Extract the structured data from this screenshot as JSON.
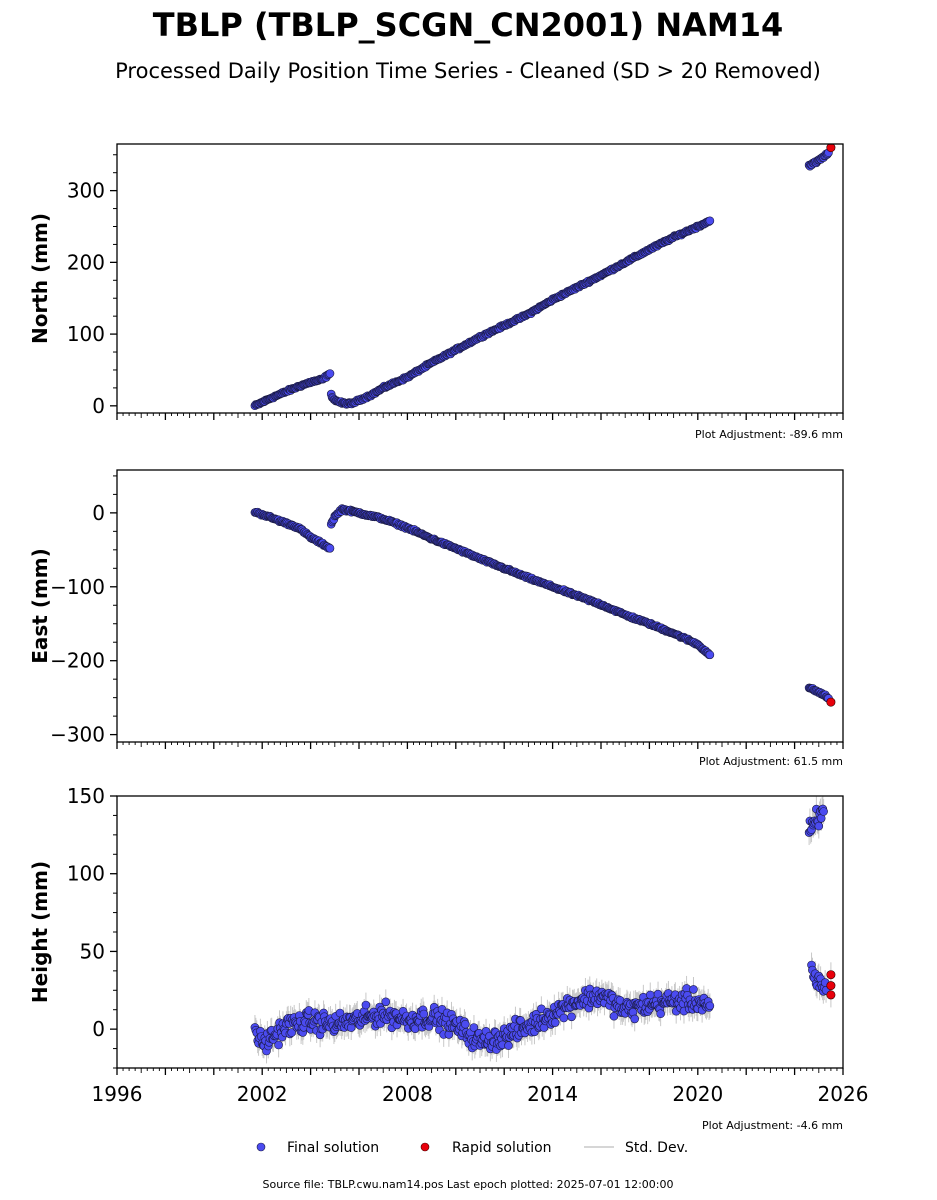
{
  "title": "TBLP (TBLP_SCGN_CN2001) NAM14",
  "subtitle": "Processed Daily Position Time Series - Cleaned (SD > 20 Removed)",
  "legend": {
    "final_label": "Final solution",
    "rapid_label": "Rapid solution",
    "std_label": "Std. Dev.",
    "placement": "bottom-center"
  },
  "footer": "Source file: TBLP.cwu.nam14.pos  Last epoch plotted: 2025-07-01 12:00:00",
  "colors": {
    "final": "#4b4bf0",
    "final_edge": "#1a1a40",
    "rapid": "#e8000b",
    "std": "#c8c8c8"
  },
  "chart_data": [
    {
      "type": "scatter",
      "panel": "north",
      "ylabel": "North (mm)",
      "adjustment": "Plot Adjustment: -89.6 mm",
      "xlim": [
        1996,
        2026
      ],
      "ylim": [
        -10,
        365
      ],
      "yticks": [
        0,
        100,
        200,
        300
      ],
      "ytick_labels": [
        "0",
        "100",
        "200",
        "300"
      ],
      "series": [
        {
          "name": "Final solution",
          "segments": [
            {
              "x": [
                2001.7,
                2002.0,
                2002.5,
                2003.0,
                2003.5,
                2004.0,
                2004.5,
                2004.8
              ],
              "y": [
                0,
                5,
                13,
                20,
                27,
                33,
                37,
                45
              ]
            },
            {
              "x": [
                2004.85,
                2005.0,
                2005.3,
                2005.7,
                2006.0,
                2006.5,
                2007.0,
                2008.0,
                2009.0,
                2010.0,
                2011.0,
                2012.0,
                2013.0,
                2014.0,
                2015.0,
                2016.0,
                2017.0,
                2018.0,
                2019.0,
                2020.0,
                2020.5
              ],
              "y": [
                15,
                8,
                4,
                3,
                8,
                15,
                25,
                40,
                60,
                78,
                96,
                112,
                128,
                148,
                165,
                182,
                200,
                218,
                235,
                250,
                258
              ]
            },
            {
              "x": [
                2024.6,
                2024.9,
                2025.2,
                2025.4
              ],
              "y": [
                335,
                340,
                347,
                353
              ]
            }
          ]
        },
        {
          "name": "Rapid solution",
          "x": [
            2025.5
          ],
          "y": [
            360
          ]
        }
      ]
    },
    {
      "type": "scatter",
      "panel": "east",
      "ylabel": "East (mm)",
      "adjustment": "Plot Adjustment: 61.5 mm",
      "xlim": [
        1996,
        2026
      ],
      "ylim": [
        -310,
        58
      ],
      "yticks": [
        -300,
        -200,
        -100,
        0
      ],
      "ytick_labels": [
        "−300",
        "−200",
        "−100",
        "0"
      ],
      "series": [
        {
          "name": "Final solution",
          "segments": [
            {
              "x": [
                2001.7,
                2002.0,
                2002.5,
                2003.0,
                2003.5,
                2004.0,
                2004.5,
                2004.8
              ],
              "y": [
                1,
                -2,
                -8,
                -14,
                -20,
                -33,
                -42,
                -48
              ]
            },
            {
              "x": [
                2004.85,
                2005.0,
                2005.3,
                2006.0,
                2007.0,
                2008.0,
                2009.0,
                2010.0,
                2011.0,
                2012.0,
                2013.0,
                2014.0,
                2015.0,
                2016.0,
                2017.0,
                2018.0,
                2019.0,
                2020.0,
                2020.5
              ],
              "y": [
                -15,
                -5,
                5,
                0,
                -8,
                -20,
                -35,
                -48,
                -62,
                -75,
                -88,
                -100,
                -112,
                -124,
                -138,
                -150,
                -163,
                -178,
                -192
              ]
            },
            {
              "x": [
                2024.6,
                2024.9,
                2025.2,
                2025.4
              ],
              "y": [
                -237,
                -241,
                -246,
                -251
              ]
            }
          ]
        },
        {
          "name": "Rapid solution",
          "x": [
            2025.5
          ],
          "y": [
            -256
          ]
        }
      ]
    },
    {
      "type": "scatter",
      "panel": "height",
      "ylabel": "Height (mm)",
      "adjustment": "Plot Adjustment: -4.6 mm",
      "xlim": [
        1996,
        2026
      ],
      "ylim": [
        -25,
        150
      ],
      "yticks": [
        0,
        50,
        100,
        150
      ],
      "ytick_labels": [
        "0",
        "50",
        "100",
        "150"
      ],
      "xticks": [
        1996,
        2002,
        2008,
        2014,
        2020,
        2026
      ],
      "xtick_labels": [
        "1996",
        "2002",
        "2008",
        "2014",
        "2020",
        "2026"
      ],
      "series": [
        {
          "name": "Final solution",
          "segments": [
            {
              "x": [
                2001.7,
                2002.0,
                2003.0,
                2004.0,
                2005.0,
                2006.0,
                2007.0,
                2008.0,
                2009.0,
                2010.0,
                2011.0,
                2012.0,
                2013.0,
                2014.0,
                2015.0,
                2016.0,
                2017.0,
                2018.0,
                2019.0,
                2020.0,
                2020.5
              ],
              "y": [
                0,
                -10,
                2,
                5,
                3,
                6,
                10,
                6,
                8,
                2,
                -8,
                -5,
                2,
                10,
                18,
                22,
                12,
                16,
                18,
                18,
                15
              ]
            },
            {
              "x": [
                2024.6,
                2024.8,
                2025.0,
                2025.2
              ],
              "y": [
                125,
                130,
                135,
                140
              ]
            },
            {
              "x": [
                2024.7,
                2025.0,
                2025.3
              ],
              "y": [
                38,
                30,
                25
              ]
            }
          ]
        },
        {
          "name": "Rapid solution",
          "x": [
            2025.5,
            2025.5,
            2025.5
          ],
          "y": [
            35,
            28,
            22
          ]
        }
      ]
    }
  ]
}
